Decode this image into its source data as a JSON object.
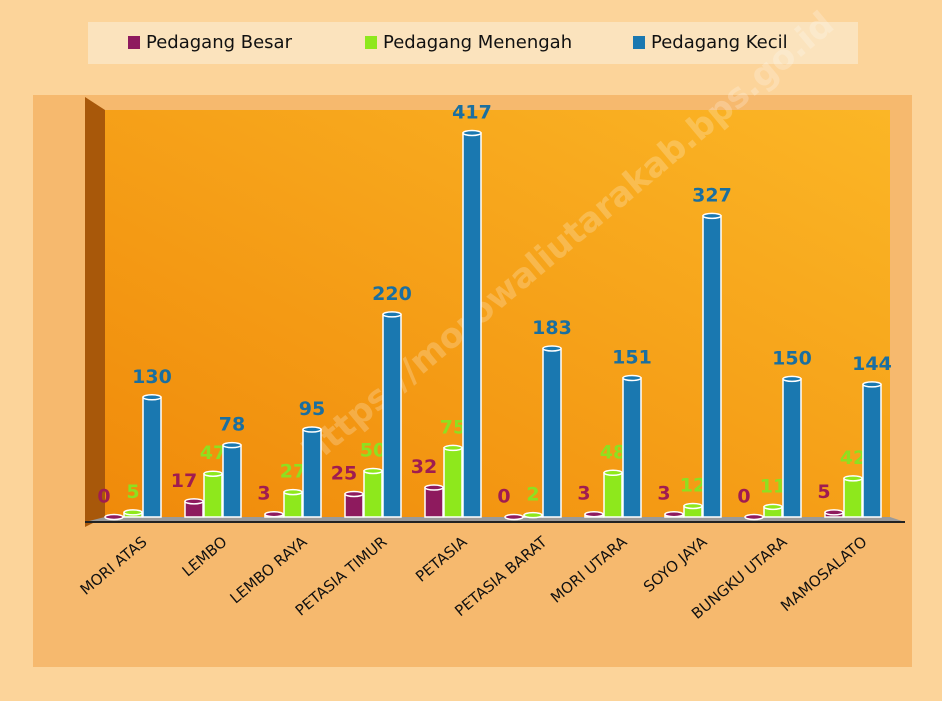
{
  "chart_data": {
    "type": "bar",
    "categories": [
      "MORI ATAS",
      "LEMBO",
      "LEMBO RAYA",
      "PETASIA TIMUR",
      "PETASIA",
      "PETASIA BARAT",
      "MORI UTARA",
      "SOYO JAYA",
      "BUNGKU UTARA",
      "MAMOSALATO"
    ],
    "series": [
      {
        "name": "Pedagang Besar",
        "color": "#8e1a5e",
        "values": [
          0,
          17,
          3,
          25,
          32,
          0,
          3,
          3,
          0,
          5
        ]
      },
      {
        "name": "Pedagang Menengah",
        "color": "#8ee81c",
        "values": [
          5,
          47,
          27,
          50,
          75,
          2,
          48,
          12,
          11,
          42
        ]
      },
      {
        "name": "Pedagang Kecil",
        "color": "#1a78b0",
        "values": [
          130,
          78,
          95,
          220,
          417,
          183,
          151,
          327,
          150,
          144
        ]
      }
    ],
    "legend": "top",
    "watermark": "https://morowaliutarakab.bps.go.id"
  }
}
